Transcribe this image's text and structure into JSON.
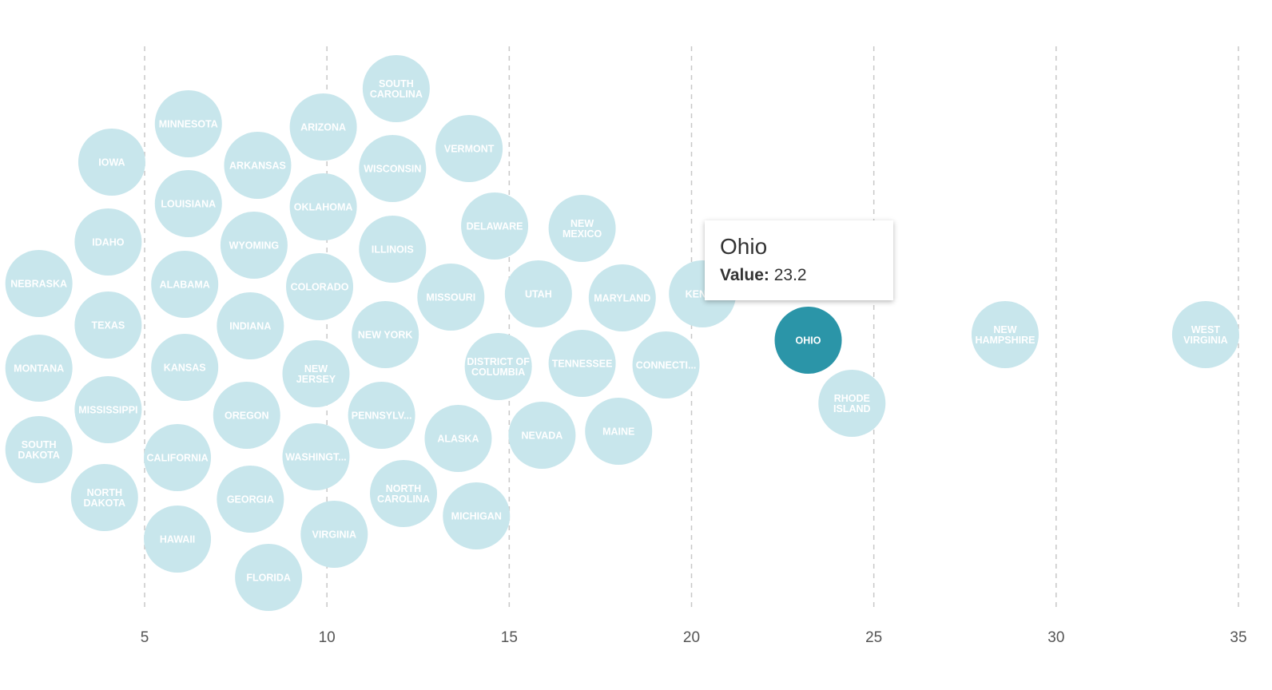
{
  "colors": {
    "bubble": "#c8e6ec",
    "bubble_label": "#ffffff",
    "highlight": "#2b95a8",
    "gridline": "#c8c8c8",
    "tick_text": "#555555"
  },
  "tooltip": {
    "title": "Ohio",
    "key": "Value:",
    "value": "23.2"
  },
  "chart_data": {
    "type": "scatter",
    "subtype": "beeswarm",
    "xlim": [
      1,
      35.5
    ],
    "x_ticks": [
      5,
      10,
      15,
      20,
      25,
      30,
      35
    ],
    "x_tick_labels": [
      "5",
      "10",
      "15",
      "20",
      "25",
      "30",
      "35"
    ],
    "grid": true,
    "highlighted": "OHIO",
    "points": [
      {
        "label": "NEBRASKA",
        "value": 2.1
      },
      {
        "label": "MONTANA",
        "value": 2.1
      },
      {
        "label": "SOUTH DAKOTA",
        "value": 2.1
      },
      {
        "label": "IOWA",
        "value": 4.1
      },
      {
        "label": "IDAHO",
        "value": 4.0
      },
      {
        "label": "TEXAS",
        "value": 4.0
      },
      {
        "label": "MISSISSIPPI",
        "value": 4.0
      },
      {
        "label": "NORTH DAKOTA",
        "value": 3.9
      },
      {
        "label": "MINNESOTA",
        "value": 6.2
      },
      {
        "label": "LOUISIANA",
        "value": 6.2
      },
      {
        "label": "ALABAMA",
        "value": 6.1
      },
      {
        "label": "KANSAS",
        "value": 6.1
      },
      {
        "label": "CALIFORNIA",
        "value": 5.9
      },
      {
        "label": "HAWAII",
        "value": 5.9
      },
      {
        "label": "ARKANSAS",
        "value": 8.1
      },
      {
        "label": "WYOMING",
        "value": 8.0
      },
      {
        "label": "INDIANA",
        "value": 7.9
      },
      {
        "label": "OREGON",
        "value": 7.8
      },
      {
        "label": "GEORGIA",
        "value": 7.9
      },
      {
        "label": "FLORIDA",
        "value": 8.4
      },
      {
        "label": "ARIZONA",
        "value": 9.9
      },
      {
        "label": "OKLAHOMA",
        "value": 9.9
      },
      {
        "label": "COLORADO",
        "value": 9.8
      },
      {
        "label": "NEW JERSEY",
        "value": 9.7
      },
      {
        "label": "WASHINGTON",
        "value": 9.7
      },
      {
        "label": "VIRGINIA",
        "value": 10.2
      },
      {
        "label": "SOUTH CAROLINA",
        "value": 11.9
      },
      {
        "label": "WISCONSIN",
        "value": 11.8
      },
      {
        "label": "ILLINOIS",
        "value": 11.8
      },
      {
        "label": "NEW YORK",
        "value": 11.6
      },
      {
        "label": "PENNSYLVANIA",
        "value": 11.5
      },
      {
        "label": "NORTH CAROLINA",
        "value": 12.1
      },
      {
        "label": "VERMONT",
        "value": 13.9
      },
      {
        "label": "MISSOURI",
        "value": 13.4
      },
      {
        "label": "ALASKA",
        "value": 13.6
      },
      {
        "label": "MICHIGAN",
        "value": 14.1
      },
      {
        "label": "DELAWARE",
        "value": 14.6
      },
      {
        "label": "DISTRICT OF COLUMBIA",
        "value": 14.7
      },
      {
        "label": "UTAH",
        "value": 15.8
      },
      {
        "label": "NEVADA",
        "value": 15.9
      },
      {
        "label": "NEW MEXICO",
        "value": 17.0
      },
      {
        "label": "TENNESSEE",
        "value": 17.0
      },
      {
        "label": "MARYLAND",
        "value": 18.1
      },
      {
        "label": "MAINE",
        "value": 18.0
      },
      {
        "label": "CONNECTICUT",
        "value": 19.3
      },
      {
        "label": "KENTUCKY",
        "value": 20.3
      },
      {
        "label": "OHIO",
        "value": 23.2
      },
      {
        "label": "RHODE ISLAND",
        "value": 24.4
      },
      {
        "label": "NEW HAMPSHIRE",
        "value": 28.6
      },
      {
        "label": "WEST VIRGINIA",
        "value": 34.1
      }
    ]
  }
}
